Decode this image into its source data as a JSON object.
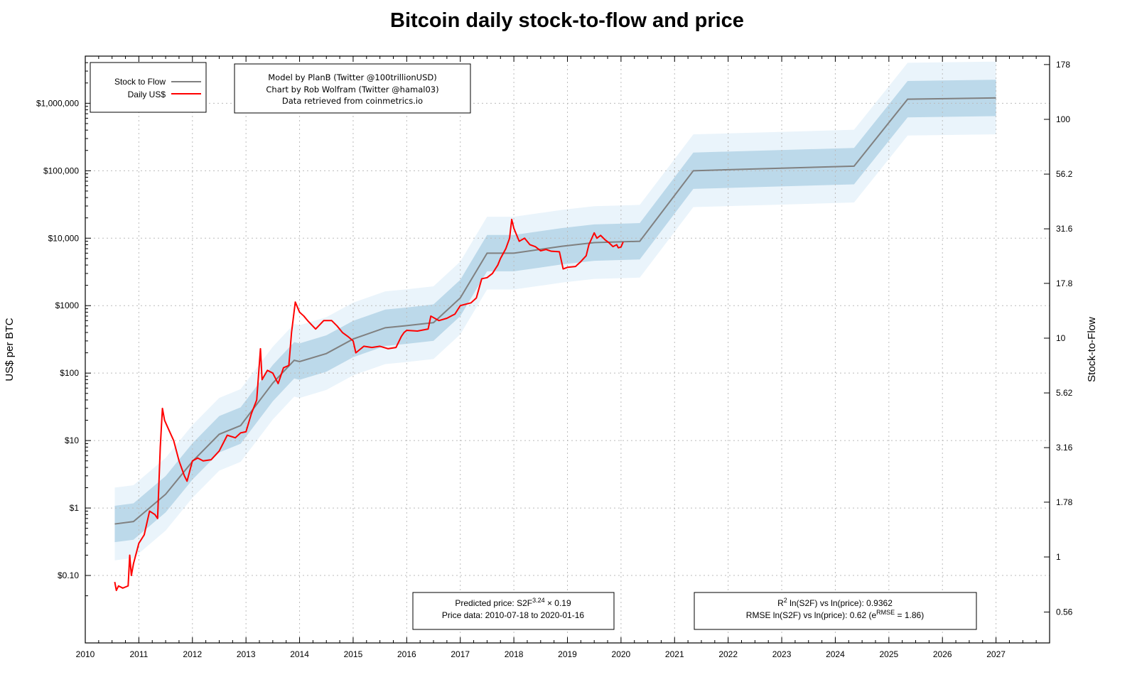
{
  "chart_data": {
    "type": "line",
    "title": "Bitcoin daily stock-to-flow and price",
    "ylabel": "US$ per BTC",
    "y2label": "Stock-to-Flow",
    "xlim": [
      2010,
      2028
    ],
    "ylim": [
      0.01,
      5000000
    ],
    "yscale": "log",
    "y2scale": "log",
    "grid": true,
    "legend_position": "top-left",
    "x_ticks": [
      "2010",
      "2011",
      "2012",
      "2013",
      "2014",
      "2015",
      "2016",
      "2017",
      "2018",
      "2019",
      "2020",
      "2021",
      "2022",
      "2023",
      "2024",
      "2025",
      "2026",
      "2027"
    ],
    "y_ticks": [
      {
        "value": 0.1,
        "label": "$0.10"
      },
      {
        "value": 1,
        "label": "$1"
      },
      {
        "value": 10,
        "label": "$10"
      },
      {
        "value": 100,
        "label": "$100"
      },
      {
        "value": 1000,
        "label": "$1000"
      },
      {
        "value": 10000,
        "label": "$10,000"
      },
      {
        "value": 100000,
        "label": "$100,000"
      },
      {
        "value": 1000000,
        "label": "$1,000,000"
      }
    ],
    "y2_ticks": [
      "0.56",
      "1",
      "1.78",
      "3.16",
      "5.62",
      "10",
      "17.8",
      "31.6",
      "56.2",
      "100",
      "178"
    ],
    "series": [
      {
        "name": "Stock to Flow",
        "color": "#808080",
        "x": [
          2010.55,
          2010.9,
          2011.5,
          2012.0,
          2012.5,
          2012.9,
          2013.5,
          2013.9,
          2014.0,
          2014.5,
          2015.0,
          2015.6,
          2016.0,
          2016.5,
          2017.0,
          2017.5,
          2018.0,
          2018.9,
          2019.5,
          2020.35,
          2021.35,
          2024.35,
          2025.35,
          2027.0
        ],
        "y": [
          0.58,
          0.63,
          1.6,
          4.9,
          12.4,
          16.7,
          71,
          155,
          148,
          195,
          320,
          470,
          505,
          560,
          1300,
          6000,
          6000,
          7600,
          8600,
          9000,
          100000,
          117000,
          1150000,
          1200000
        ]
      },
      {
        "name": "Daily US$",
        "color": "#ff0000",
        "x": [
          2010.55,
          2010.58,
          2010.62,
          2010.7,
          2010.8,
          2010.83,
          2010.86,
          2010.9,
          2011.0,
          2011.1,
          2011.2,
          2011.3,
          2011.35,
          2011.4,
          2011.44,
          2011.48,
          2011.55,
          2011.65,
          2011.75,
          2011.85,
          2011.9,
          2012.0,
          2012.1,
          2012.2,
          2012.35,
          2012.5,
          2012.6,
          2012.65,
          2012.8,
          2012.9,
          2013.0,
          2013.1,
          2013.2,
          2013.27,
          2013.3,
          2013.4,
          2013.5,
          2013.6,
          2013.7,
          2013.8,
          2013.85,
          2013.92,
          2014.0,
          2014.08,
          2014.15,
          2014.3,
          2014.45,
          2014.6,
          2014.7,
          2014.8,
          2014.9,
          2015.0,
          2015.05,
          2015.2,
          2015.35,
          2015.5,
          2015.65,
          2015.8,
          2015.9,
          2015.95,
          2016.0,
          2016.2,
          2016.4,
          2016.45,
          2016.6,
          2016.75,
          2016.9,
          2017.0,
          2017.1,
          2017.2,
          2017.3,
          2017.4,
          2017.5,
          2017.6,
          2017.7,
          2017.75,
          2017.85,
          2017.92,
          2017.96,
          2018.0,
          2018.1,
          2018.2,
          2018.3,
          2018.4,
          2018.5,
          2018.6,
          2018.7,
          2018.85,
          2018.92,
          2019.0,
          2019.15,
          2019.25,
          2019.35,
          2019.4,
          2019.5,
          2019.55,
          2019.62,
          2019.7,
          2019.78,
          2019.85,
          2019.92,
          2019.95,
          2020.0,
          2020.04
        ],
        "y": [
          0.08,
          0.06,
          0.07,
          0.065,
          0.07,
          0.2,
          0.1,
          0.15,
          0.3,
          0.4,
          0.9,
          0.8,
          0.7,
          8,
          30,
          20,
          15,
          10,
          5,
          3,
          2.5,
          5,
          5.5,
          5,
          5.2,
          7,
          10,
          12,
          11,
          13,
          13.5,
          25,
          40,
          230,
          80,
          110,
          100,
          70,
          120,
          130,
          400,
          1130,
          800,
          700,
          600,
          450,
          600,
          600,
          500,
          400,
          350,
          300,
          200,
          250,
          240,
          250,
          230,
          240,
          350,
          400,
          430,
          420,
          450,
          700,
          600,
          650,
          750,
          1000,
          1050,
          1100,
          1300,
          2500,
          2600,
          3000,
          4000,
          5000,
          7000,
          10000,
          19000,
          14000,
          9000,
          10000,
          8000,
          7500,
          6500,
          6800,
          6400,
          6300,
          3500,
          3700,
          3800,
          4500,
          5500,
          8000,
          12000,
          10000,
          11000,
          9500,
          8500,
          7500,
          8000,
          7200,
          7400,
          8800
        ]
      }
    ],
    "bands": {
      "inner_factor": 1.86,
      "outer_factor": 3.46,
      "inner_color": "#bcd9ea",
      "outer_color": "#eaf4fb"
    },
    "annotations": {
      "credits": [
        "Model by PlanB (Twitter @100trillionUSD)",
        "Chart by Rob Wolfram (Twitter @hamal03)",
        "Data retrieved from coinmetrics.io"
      ],
      "formula_prefix": "Predicted price: S2F",
      "formula_exp": "3.24",
      "formula_suffix": " × 0.19",
      "price_range": "Price data: 2010-07-18 to 2020-01-16",
      "r2_sup": "2",
      "r2_prefix": "R",
      "r2_text": " ln(S2F) vs ln(price): 0.9362",
      "rmse_prefix": "RMSE ln(S2F) vs ln(price): 0.62 (e",
      "rmse_sup": "RMSE",
      "rmse_suffix": " = 1.86)"
    }
  }
}
